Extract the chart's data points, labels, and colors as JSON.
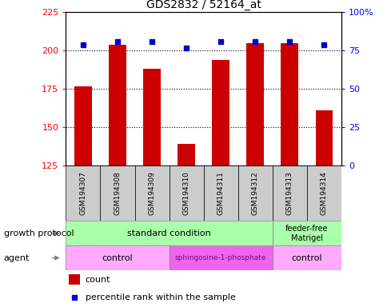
{
  "title": "GDS2832 / 52164_at",
  "samples": [
    "GSM194307",
    "GSM194308",
    "GSM194309",
    "GSM194310",
    "GSM194311",
    "GSM194312",
    "GSM194313",
    "GSM194314"
  ],
  "counts": [
    177,
    204,
    188,
    139,
    194,
    205,
    205,
    161
  ],
  "percentile_ranks": [
    79,
    81,
    81,
    77,
    81,
    81,
    81,
    79
  ],
  "ylim_left": [
    125,
    225
  ],
  "ylim_right": [
    0,
    100
  ],
  "yticks_left": [
    125,
    150,
    175,
    200,
    225
  ],
  "yticks_right": [
    0,
    25,
    50,
    75,
    100
  ],
  "ytick_labels_right": [
    "0",
    "25",
    "50",
    "75",
    "100%"
  ],
  "bar_color": "#cc0000",
  "dot_color": "#0000cc",
  "bar_width": 0.5,
  "bg_color": "#ffffff",
  "gray_box_color": "#cccccc",
  "gp_color": "#aaffaa",
  "agent_ctrl_color": "#ffaaff",
  "agent_sph_color": "#ee66ee",
  "legend_count_label": "count",
  "legend_pct_label": "percentile rank within the sample"
}
